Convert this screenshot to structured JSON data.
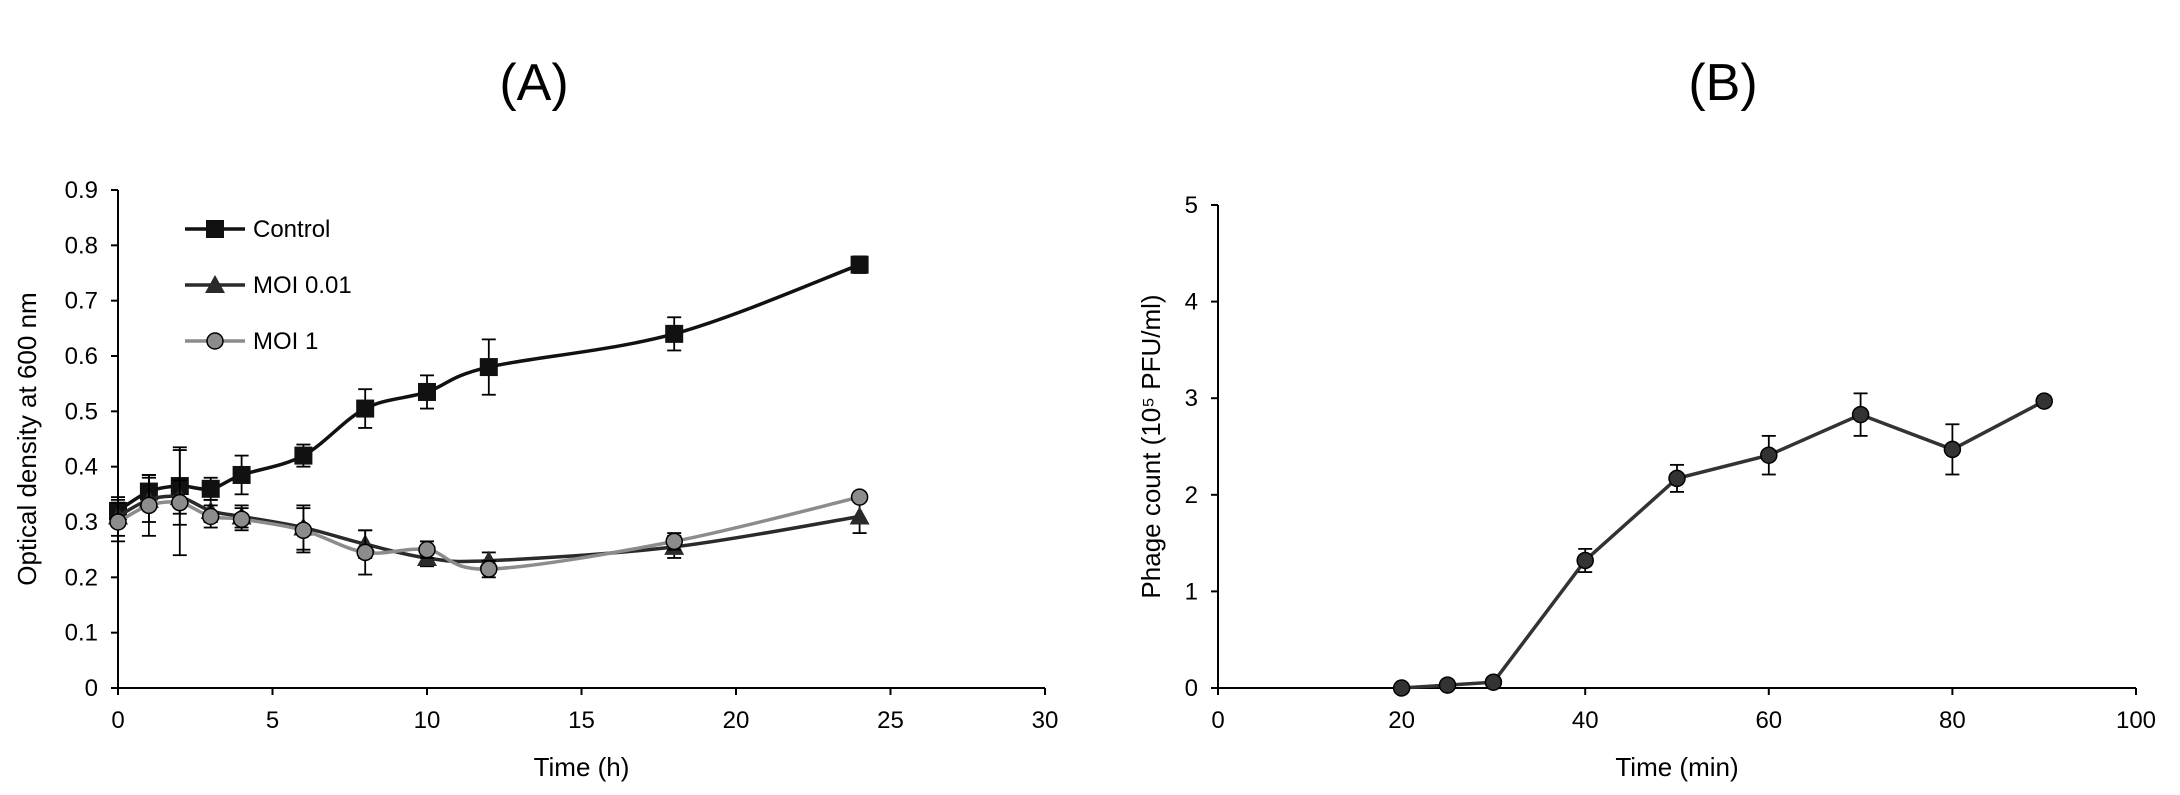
{
  "chart_data": [
    {
      "panel_label": "(A)",
      "type": "line",
      "xlabel": "Time (h)",
      "ylabel": "Optical density at 600 nm",
      "xlim": [
        0,
        30
      ],
      "ylim": [
        0,
        0.9
      ],
      "x_ticks": [
        "0",
        "5",
        "10",
        "15",
        "20",
        "25",
        "30"
      ],
      "y_ticks": [
        "0",
        "0.1",
        "0.2",
        "0.3",
        "0.4",
        "0.5",
        "0.6",
        "0.7",
        "0.8",
        "0.9"
      ],
      "grid": false,
      "legend_position": "top-left",
      "series": [
        {
          "name": "Control",
          "marker": "square",
          "color": "#111111",
          "x": [
            0,
            1,
            2,
            3,
            4,
            6,
            8,
            10,
            12,
            18,
            24
          ],
          "y": [
            0.32,
            0.355,
            0.365,
            0.36,
            0.385,
            0.42,
            0.505,
            0.535,
            0.58,
            0.64,
            0.765
          ],
          "error": [
            0.02,
            0.03,
            0.07,
            0.02,
            0.035,
            0.02,
            0.035,
            0.03,
            0.05,
            0.03,
            0.015
          ]
        },
        {
          "name": "MOI 0.01",
          "marker": "triangle",
          "color": "#2a2a2a",
          "x": [
            0,
            1,
            2,
            3,
            4,
            6,
            8,
            10,
            12,
            18,
            24
          ],
          "y": [
            0.31,
            0.34,
            0.345,
            0.32,
            0.31,
            0.29,
            0.26,
            0.235,
            0.23,
            0.255,
            0.31
          ],
          "error": [
            0.035,
            0.04,
            0.03,
            0.02,
            0.02,
            0.04,
            0.025,
            0.015,
            0.015,
            0.02,
            0.03
          ]
        },
        {
          "name": "MOI 1",
          "marker": "circle",
          "color": "#8c8c8c",
          "x": [
            0,
            1,
            2,
            3,
            4,
            6,
            8,
            10,
            12,
            18,
            24
          ],
          "y": [
            0.3,
            0.33,
            0.335,
            0.31,
            0.305,
            0.285,
            0.245,
            0.25,
            0.215,
            0.265,
            0.345
          ],
          "error": [
            0.035,
            0.055,
            0.095,
            0.02,
            0.02,
            0.04,
            0.04,
            0.015,
            0.015,
            0.015,
            0.005
          ]
        }
      ]
    },
    {
      "panel_label": "(B)",
      "type": "line",
      "xlabel": "Time (min)",
      "ylabel": "Phage count (10⁵ PFU/ml)",
      "xlim": [
        0,
        100
      ],
      "ylim": [
        0,
        5
      ],
      "x_ticks": [
        "0",
        "20",
        "40",
        "60",
        "80",
        "100"
      ],
      "y_ticks": [
        "0",
        "1",
        "2",
        "3",
        "4",
        "5"
      ],
      "grid": false,
      "series": [
        {
          "marker": "circle",
          "color": "#333333",
          "x": [
            20,
            25,
            30,
            40,
            50,
            60,
            70,
            80,
            90
          ],
          "y": [
            0.0,
            0.03,
            0.06,
            1.32,
            2.17,
            2.41,
            2.83,
            2.47,
            2.97
          ],
          "error": [
            0.0,
            0.02,
            0.02,
            0.12,
            0.14,
            0.2,
            0.22,
            0.26,
            0.05
          ]
        }
      ]
    }
  ]
}
